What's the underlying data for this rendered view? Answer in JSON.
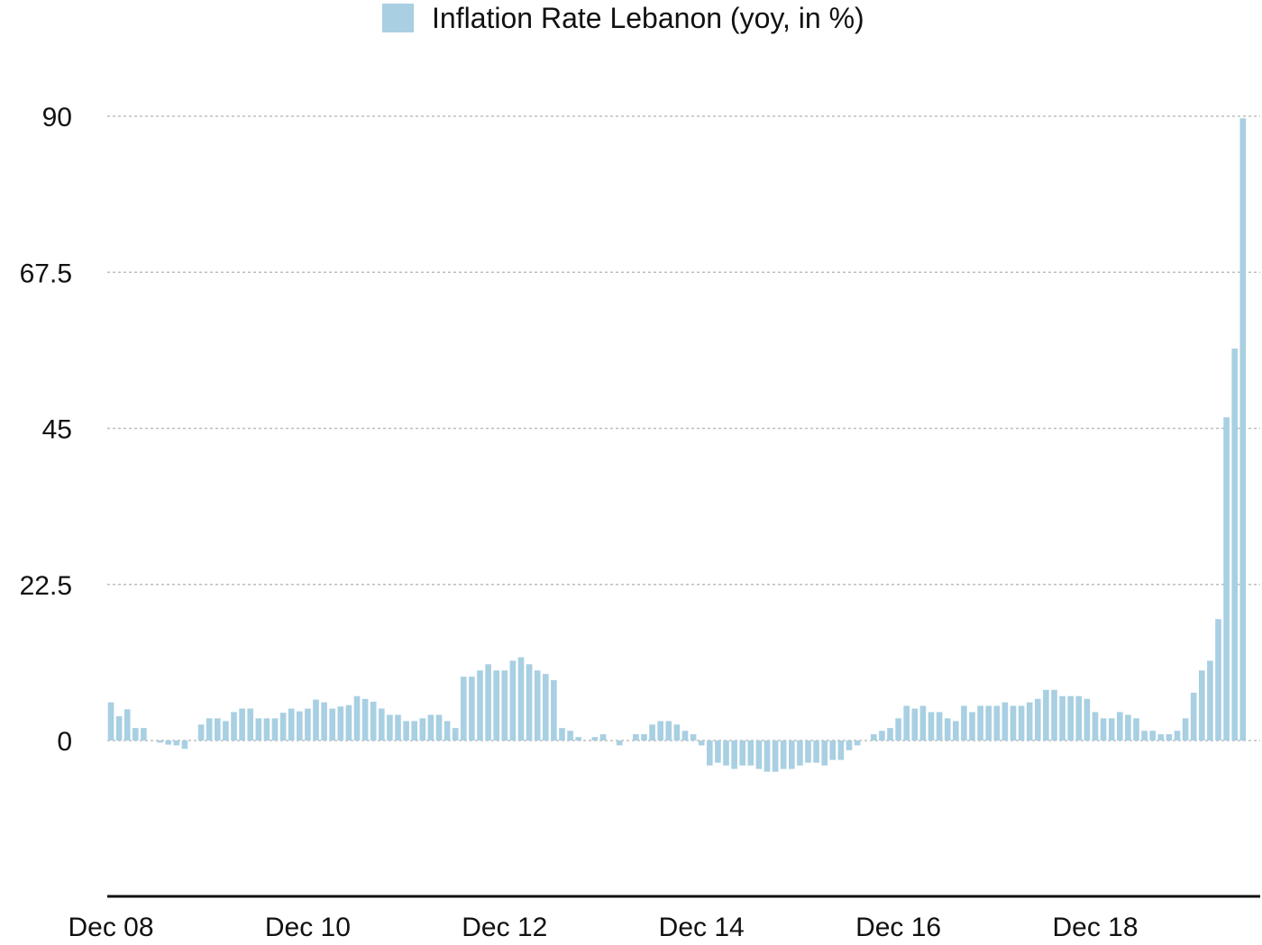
{
  "chart_data": {
    "type": "bar",
    "title": "",
    "xlabel": "",
    "ylabel": "",
    "legend": {
      "position": "top-center"
    },
    "grid": {
      "y": true,
      "style": "dotted"
    },
    "ylim": [
      -18.5,
      90
    ],
    "yticks": [
      {
        "value": 0,
        "label": "0"
      },
      {
        "value": 22.5,
        "label": "22.5"
      },
      {
        "value": 45,
        "label": "45"
      },
      {
        "value": 67.5,
        "label": "67.5"
      },
      {
        "value": 90,
        "label": "90"
      }
    ],
    "xticks": [
      {
        "index": 0,
        "label": "Dec 08"
      },
      {
        "index": 24,
        "label": "Dec 10"
      },
      {
        "index": 48,
        "label": "Dec 12"
      },
      {
        "index": 72,
        "label": "Dec 14"
      },
      {
        "index": 96,
        "label": "Dec 16"
      },
      {
        "index": 120,
        "label": "Dec 18"
      }
    ],
    "series": [
      {
        "name": "Inflation Rate Lebanon (yoy, in %)",
        "color": "#a8cfe2",
        "start": "2008-12",
        "values": [
          5.5,
          3.5,
          4.5,
          1.8,
          1.8,
          0.0,
          -0.3,
          -0.6,
          -0.7,
          -1.2,
          0.0,
          2.3,
          3.2,
          3.2,
          2.8,
          4.1,
          4.6,
          4.6,
          3.2,
          3.2,
          3.2,
          4.0,
          4.6,
          4.2,
          4.6,
          5.9,
          5.5,
          4.6,
          4.9,
          5.1,
          6.4,
          6.0,
          5.6,
          4.6,
          3.7,
          3.7,
          2.8,
          2.8,
          3.2,
          3.7,
          3.7,
          2.8,
          1.8,
          9.2,
          9.2,
          10.1,
          11.0,
          10.1,
          10.1,
          11.5,
          12.0,
          11.0,
          10.1,
          9.6,
          8.7,
          1.8,
          1.4,
          0.5,
          0.0,
          0.5,
          0.9,
          0.0,
          -0.7,
          0.0,
          0.9,
          0.9,
          2.3,
          2.8,
          2.8,
          2.3,
          1.4,
          0.9,
          -0.7,
          -3.6,
          -3.2,
          -3.6,
          -4.1,
          -3.6,
          -3.6,
          -4.1,
          -4.5,
          -4.5,
          -4.1,
          -4.1,
          -3.6,
          -3.2,
          -3.2,
          -3.6,
          -2.8,
          -2.8,
          -1.4,
          -0.7,
          0.0,
          0.9,
          1.4,
          1.8,
          3.2,
          5.0,
          4.6,
          5.0,
          4.1,
          4.1,
          3.2,
          2.8,
          5.0,
          4.1,
          5.0,
          5.0,
          5.0,
          5.5,
          5.0,
          5.0,
          5.5,
          6.0,
          7.3,
          7.3,
          6.4,
          6.4,
          6.4,
          6.0,
          4.1,
          3.2,
          3.2,
          4.1,
          3.7,
          3.2,
          1.4,
          1.4,
          0.9,
          0.9,
          1.4,
          3.2,
          6.9,
          10.1,
          11.5,
          17.5,
          46.6,
          56.5,
          89.7
        ]
      }
    ]
  }
}
